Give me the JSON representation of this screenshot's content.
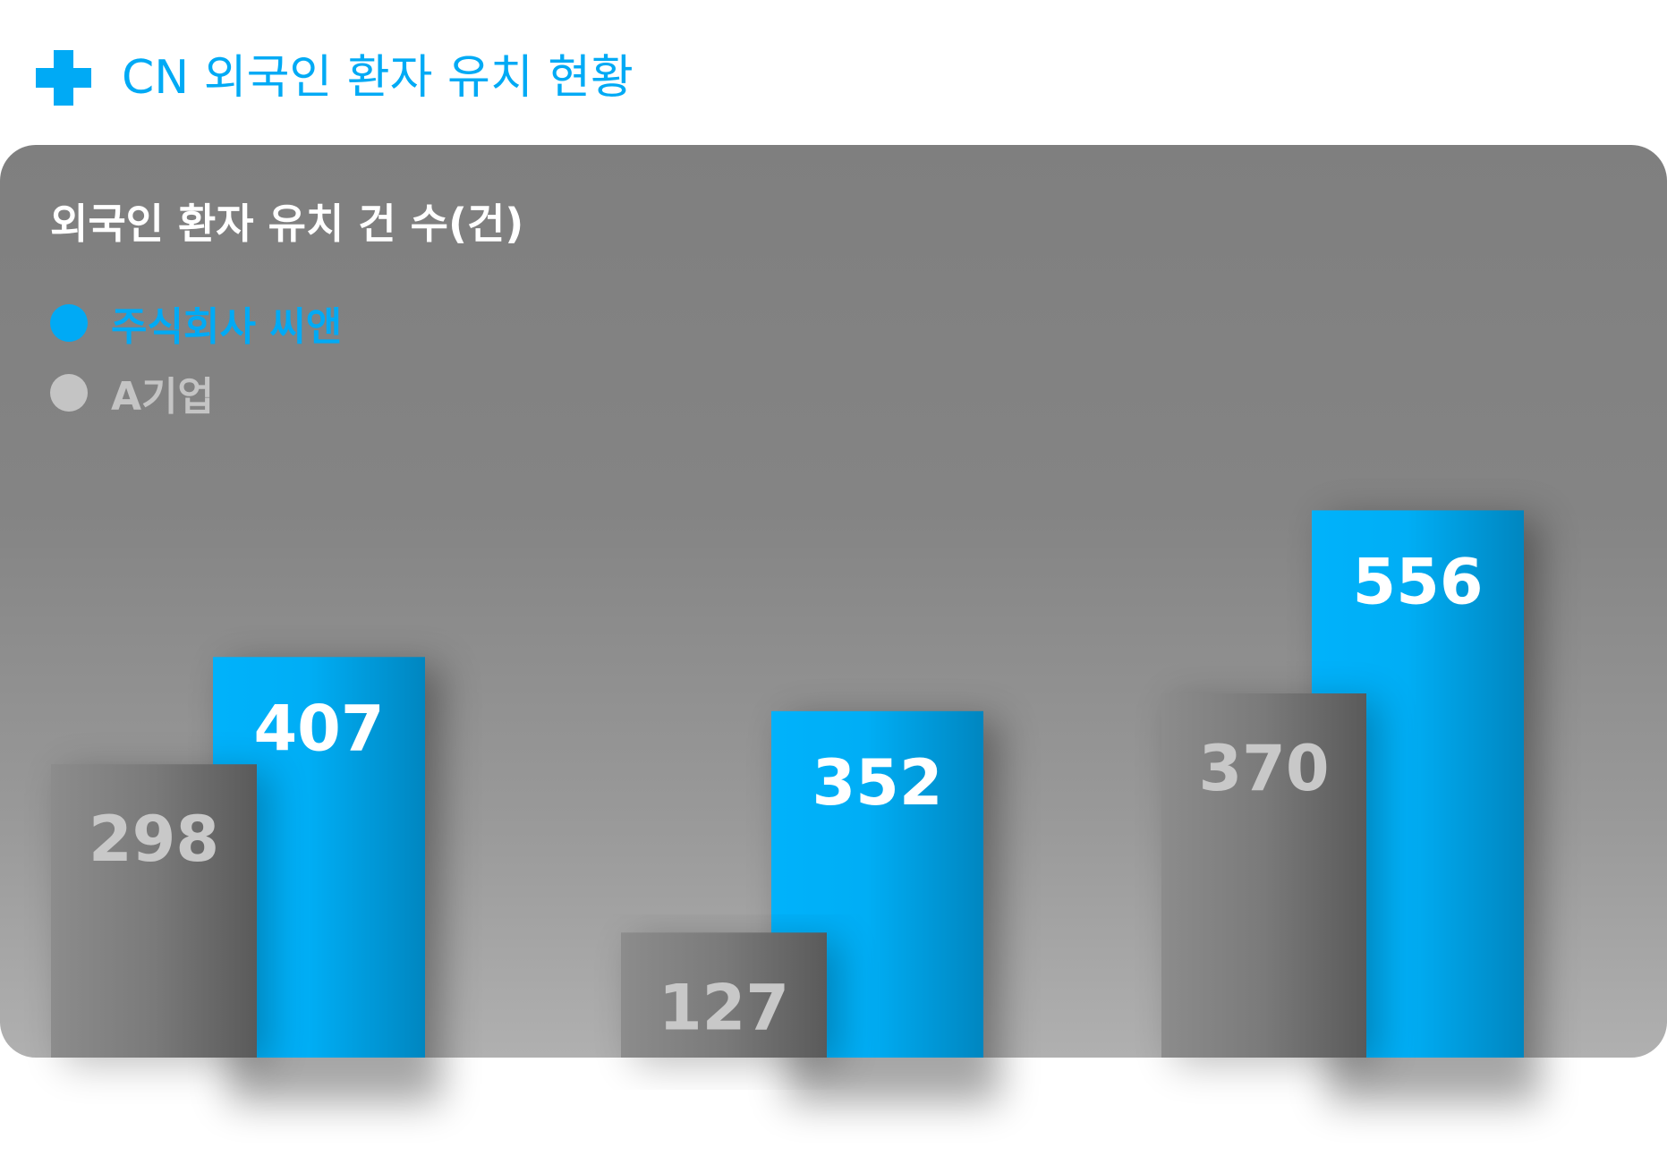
{
  "header": {
    "title": "CN 외국인 환자 유치 현황",
    "icon": "plus-icon",
    "accent": "#00aaf5"
  },
  "chart_data": {
    "type": "bar",
    "title": "외국인 환자 유치 건 수(건)",
    "categories": [
      "",
      "",
      ""
    ],
    "series": [
      {
        "name": "주식회사 씨앤",
        "values": [
          407,
          352,
          556
        ],
        "color": "#00b0f8"
      },
      {
        "name": "A기업",
        "values": [
          298,
          127,
          370
        ],
        "color": "#808080"
      }
    ],
    "legend": "top-left",
    "grid": false,
    "ylim": [
      0,
      640
    ]
  }
}
